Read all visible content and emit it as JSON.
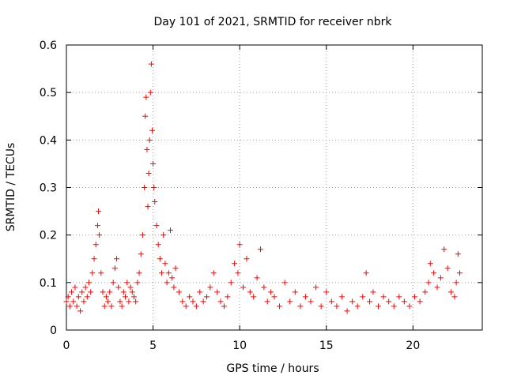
{
  "chart_data": {
    "type": "scatter",
    "title": "Day 101 of 2021, SRMTID for receiver nbrk",
    "xlabel": "GPS time / hours",
    "ylabel": "SRMTID / TECUs",
    "xlim": [
      0,
      24
    ],
    "ylim": [
      0,
      0.6
    ],
    "xticks": [
      0,
      5,
      10,
      15,
      20
    ],
    "xtick_labels": [
      "0",
      "5",
      "10",
      "15",
      "20"
    ],
    "yticks": [
      0,
      0.1,
      0.2,
      0.3,
      0.4,
      0.5,
      0.6
    ],
    "ytick_labels": [
      "0",
      "0.1",
      "0.2",
      "0.3",
      "0.4",
      "0.5",
      "0.6"
    ],
    "grid": true,
    "marker": "+",
    "color": "#ff0000",
    "series": [
      {
        "name": "SRMTID",
        "x": [
          0.0,
          0.1,
          0.2,
          0.3,
          0.4,
          0.5,
          0.6,
          0.7,
          0.8,
          0.9,
          1.0,
          1.1,
          1.2,
          1.3,
          1.4,
          1.5,
          1.6,
          1.7,
          1.8,
          1.85,
          1.9,
          2.0,
          2.1,
          2.2,
          2.3,
          2.4,
          2.5,
          2.6,
          2.7,
          2.8,
          2.9,
          3.0,
          3.1,
          3.2,
          3.3,
          3.4,
          3.5,
          3.6,
          3.7,
          3.8,
          3.9,
          4.0,
          4.1,
          4.2,
          4.3,
          4.4,
          4.5,
          4.55,
          4.6,
          4.65,
          4.7,
          4.75,
          4.8,
          4.85,
          4.9,
          4.95,
          5.0,
          5.05,
          5.1,
          5.2,
          5.3,
          5.4,
          5.5,
          5.6,
          5.7,
          5.8,
          5.9,
          6.0,
          6.1,
          6.2,
          6.3,
          6.5,
          6.7,
          6.9,
          7.1,
          7.3,
          7.5,
          7.7,
          7.9,
          8.1,
          8.3,
          8.5,
          8.7,
          8.9,
          9.1,
          9.3,
          9.5,
          9.7,
          9.9,
          10.0,
          10.2,
          10.4,
          10.6,
          10.8,
          11.0,
          11.2,
          11.4,
          11.6,
          11.8,
          12.0,
          12.3,
          12.6,
          12.9,
          13.2,
          13.5,
          13.8,
          14.1,
          14.4,
          14.7,
          15.0,
          15.3,
          15.6,
          15.9,
          16.2,
          16.5,
          16.8,
          17.1,
          17.3,
          17.5,
          17.7,
          18.0,
          18.3,
          18.6,
          18.9,
          19.2,
          19.5,
          19.8,
          20.1,
          20.4,
          20.7,
          20.9,
          21.0,
          21.2,
          21.4,
          21.6,
          21.8,
          22.0,
          22.2,
          22.4,
          22.5,
          22.6,
          22.7
        ],
        "values": [
          0.06,
          0.07,
          0.05,
          0.08,
          0.06,
          0.09,
          0.05,
          0.07,
          0.04,
          0.08,
          0.06,
          0.09,
          0.07,
          0.1,
          0.08,
          0.12,
          0.15,
          0.18,
          0.22,
          0.25,
          0.2,
          0.12,
          0.08,
          0.05,
          0.07,
          0.06,
          0.08,
          0.05,
          0.1,
          0.13,
          0.15,
          0.09,
          0.06,
          0.05,
          0.08,
          0.07,
          0.1,
          0.06,
          0.09,
          0.08,
          0.07,
          0.06,
          0.1,
          0.12,
          0.16,
          0.2,
          0.3,
          0.45,
          0.49,
          0.38,
          0.26,
          0.33,
          0.4,
          0.5,
          0.56,
          0.42,
          0.35,
          0.3,
          0.27,
          0.22,
          0.18,
          0.15,
          0.12,
          0.2,
          0.14,
          0.1,
          0.12,
          0.21,
          0.11,
          0.09,
          0.13,
          0.08,
          0.06,
          0.05,
          0.07,
          0.06,
          0.05,
          0.08,
          0.06,
          0.07,
          0.09,
          0.12,
          0.08,
          0.06,
          0.05,
          0.07,
          0.1,
          0.14,
          0.12,
          0.18,
          0.09,
          0.15,
          0.08,
          0.07,
          0.11,
          0.17,
          0.09,
          0.06,
          0.08,
          0.07,
          0.05,
          0.1,
          0.06,
          0.08,
          0.05,
          0.07,
          0.06,
          0.09,
          0.05,
          0.08,
          0.06,
          0.05,
          0.07,
          0.04,
          0.06,
          0.05,
          0.07,
          0.12,
          0.06,
          0.08,
          0.05,
          0.07,
          0.06,
          0.05,
          0.07,
          0.06,
          0.05,
          0.07,
          0.06,
          0.08,
          0.1,
          0.14,
          0.12,
          0.09,
          0.11,
          0.17,
          0.13,
          0.08,
          0.07,
          0.1,
          0.16,
          0.12
        ]
      }
    ]
  }
}
